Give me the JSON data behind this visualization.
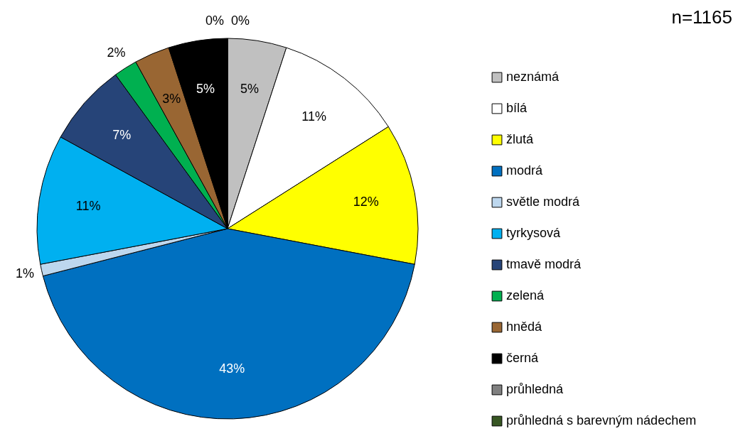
{
  "chart_data": {
    "type": "pie",
    "categories": [
      "neznámá",
      "bílá",
      "žlutá",
      "modrá",
      "světle modrá",
      "tyrkysová",
      "tmavě modrá",
      "zelená",
      "hnědá",
      "černá",
      "průhledná",
      "průhledná s barevným nádechem"
    ],
    "values": [
      5,
      11,
      12,
      43,
      1,
      11,
      7,
      2,
      3,
      5,
      0,
      0
    ],
    "value_labels": [
      "5%",
      "11%",
      "12%",
      "43%",
      "1%",
      "11%",
      "7%",
      "2%",
      "3%",
      "5%",
      "0%",
      "0%"
    ],
    "colors": [
      "#c0c0c0",
      "#ffffff",
      "#ffff00",
      "#0070c0",
      "#bdd7ee",
      "#00b0f0",
      "#264478",
      "#00b050",
      "#996633",
      "#000000",
      "#808080",
      "#375623"
    ],
    "legend": "right",
    "annotations": [
      "n=1165"
    ]
  }
}
